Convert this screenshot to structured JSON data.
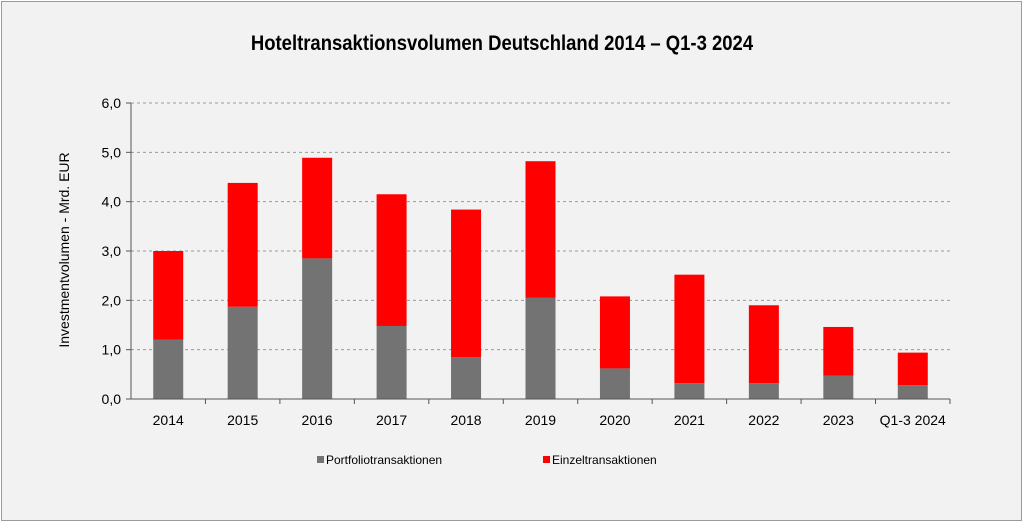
{
  "chart_data": {
    "type": "bar",
    "stacked": true,
    "title": "Hoteltransaktionsvolumen Deutschland 2014 – Q1-3 2024",
    "ylabel": "Investmentvolumen - Mrd. EUR",
    "xlabel": "",
    "ylim": [
      0,
      6
    ],
    "yticks": [
      "0,0",
      "1,0",
      "2,0",
      "3,0",
      "4,0",
      "5,0",
      "6,0"
    ],
    "grid": true,
    "legend_position": "bottom",
    "categories": [
      "2014",
      "2015",
      "2016",
      "2017",
      "2018",
      "2019",
      "2020",
      "2021",
      "2022",
      "2023",
      "Q1-3 2024"
    ],
    "series": [
      {
        "name": "Portfoliotransaktionen",
        "color": "#737373",
        "values": [
          1.2,
          1.87,
          2.85,
          1.48,
          0.85,
          2.05,
          0.62,
          0.32,
          0.32,
          0.47,
          0.28
        ]
      },
      {
        "name": "Einzeltransaktionen",
        "color": "#ff0000",
        "values": [
          1.8,
          2.51,
          2.04,
          2.67,
          2.99,
          2.77,
          1.46,
          2.2,
          1.58,
          0.99,
          0.66
        ]
      }
    ]
  }
}
